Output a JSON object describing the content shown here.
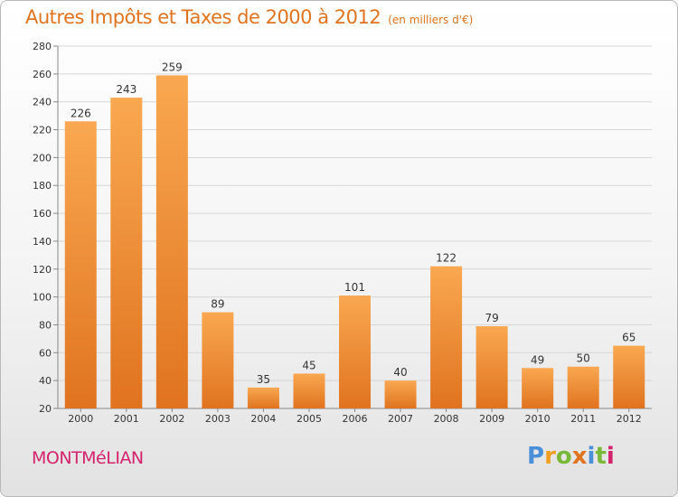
{
  "header": {
    "title": "Autres Impôts et Taxes de 2000 à 2012",
    "subtitle": "(en milliers d'€)"
  },
  "footer": {
    "town": "MONTMéLIAN",
    "logo_letters": [
      "P",
      "r",
      "o",
      "x",
      "i",
      "t",
      "i"
    ]
  },
  "colors": {
    "bar_light": "#f9a851",
    "bar_dark": "#e0731f",
    "title": "#e0731f",
    "town": "#d4236c",
    "logo": [
      "#4a90d9",
      "#f0a020",
      "#7ab83a",
      "#e0731f",
      "#4a90d9",
      "#7ab83a",
      "#d4236c"
    ]
  },
  "chart_data": {
    "type": "bar",
    "title": "Autres Impôts et Taxes de 2000 à 2012",
    "subtitle": "(en milliers d'€)",
    "xlabel": "",
    "ylabel": "",
    "categories": [
      "2000",
      "2001",
      "2002",
      "2003",
      "2004",
      "2005",
      "2006",
      "2007",
      "2008",
      "2009",
      "2010",
      "2011",
      "2012"
    ],
    "values": [
      226,
      243,
      259,
      89,
      35,
      45,
      101,
      40,
      122,
      79,
      49,
      50,
      65
    ],
    "ylim": [
      20,
      280
    ],
    "yticks": [
      20,
      40,
      60,
      80,
      100,
      120,
      140,
      160,
      180,
      200,
      220,
      240,
      260,
      280
    ],
    "grid": true
  }
}
